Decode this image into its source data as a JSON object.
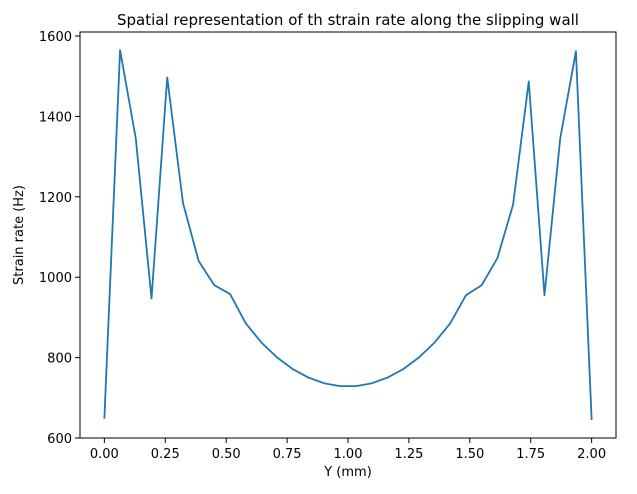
{
  "chart_data": {
    "type": "line",
    "title": "Spatial representation of th strain rate along the slipping wall",
    "xlabel": "Y (mm)",
    "ylabel": "Strain rate (Hz)",
    "xlim": [
      -0.1,
      2.1
    ],
    "ylim": [
      600,
      1610
    ],
    "xticks": [
      0.0,
      0.25,
      0.5,
      0.75,
      1.0,
      1.25,
      1.5,
      1.75,
      2.0
    ],
    "xtick_labels": [
      "0.00",
      "0.25",
      "0.50",
      "0.75",
      "1.00",
      "1.25",
      "1.50",
      "1.75",
      "2.00"
    ],
    "yticks": [
      600,
      800,
      1000,
      1200,
      1400,
      1600
    ],
    "ytick_labels": [
      "600",
      "800",
      "1000",
      "1200",
      "1400",
      "1600"
    ],
    "grid": false,
    "line_color": "#1f77b4",
    "series": [
      {
        "x": [
          0.0,
          0.0645,
          0.129,
          0.1935,
          0.258,
          0.3226,
          0.3871,
          0.4516,
          0.5161,
          0.5806,
          0.6452,
          0.7097,
          0.7742,
          0.8387,
          0.9032,
          0.9677,
          1.0323,
          1.0968,
          1.1613,
          1.2258,
          1.2903,
          1.3548,
          1.4194,
          1.4839,
          1.5484,
          1.6129,
          1.6774,
          1.7419,
          1.8065,
          1.871,
          1.9355,
          2.0
        ],
        "values": [
          648,
          1565,
          1345,
          947,
          1497,
          1185,
          1040,
          980,
          958,
          885,
          837,
          800,
          771,
          750,
          736,
          729,
          729,
          736,
          750,
          771,
          800,
          837,
          885,
          955,
          980,
          1047,
          1180,
          1487,
          955,
          1345,
          1562,
          645
        ]
      }
    ]
  }
}
